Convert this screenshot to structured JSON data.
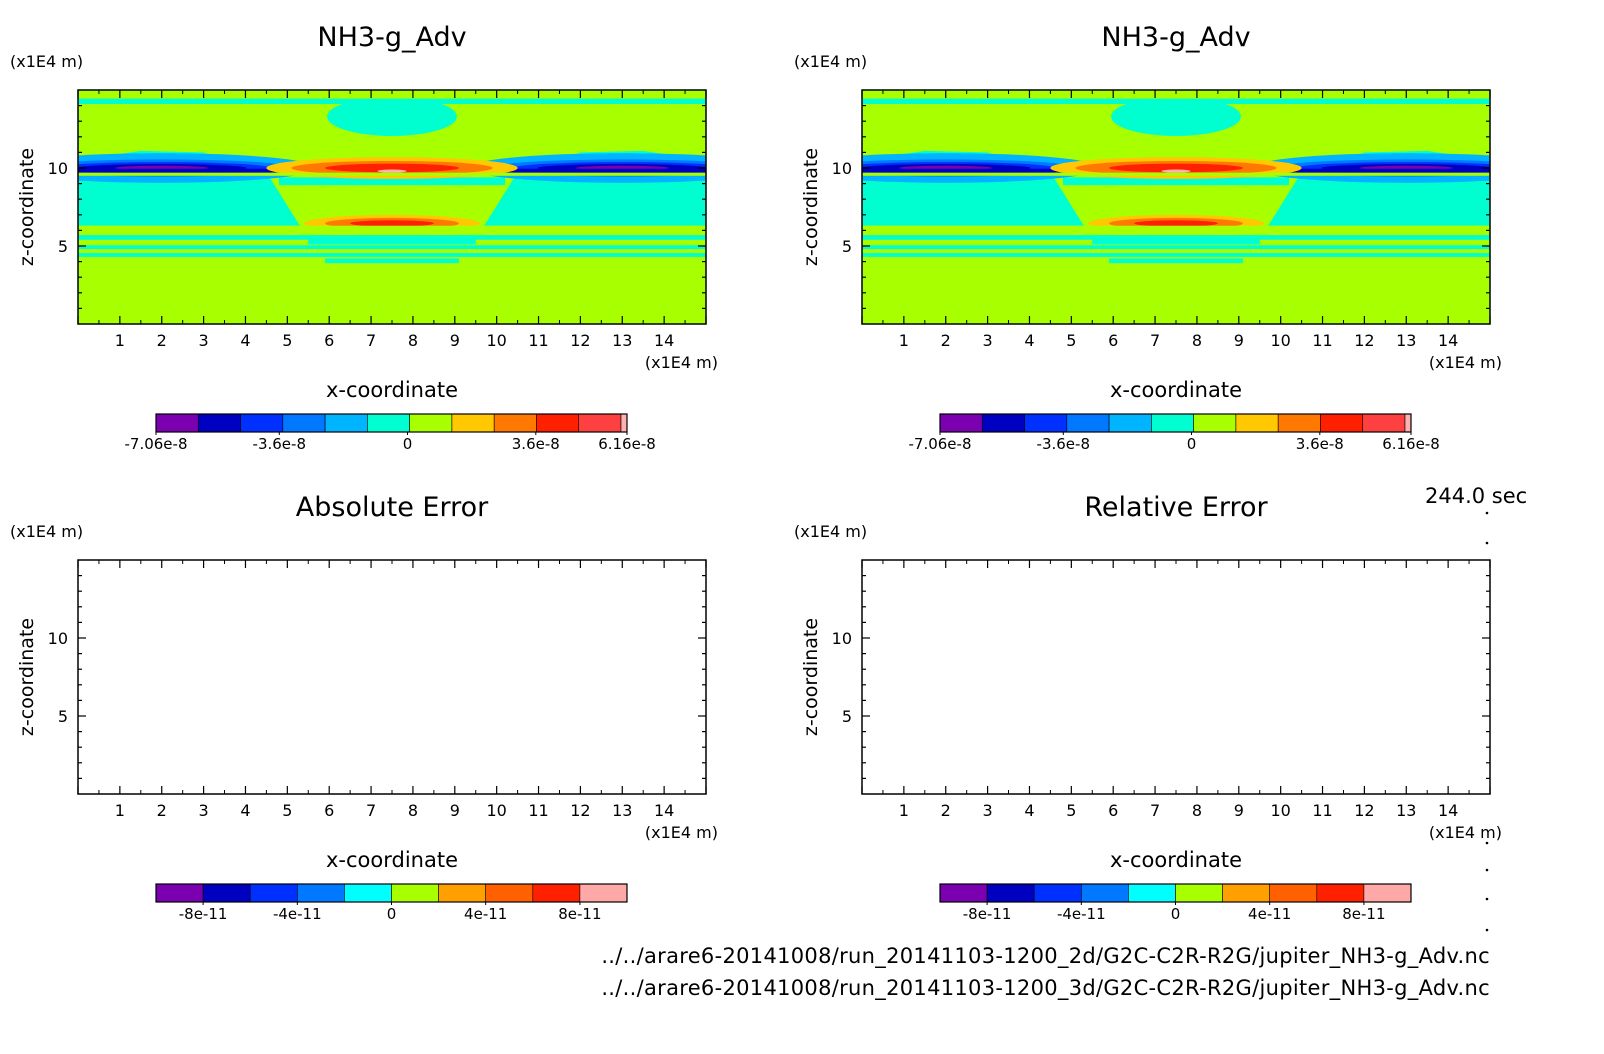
{
  "time_label": "244.0 sec",
  "files": [
    "../../arare6-20141008/run_20141103-1200_2d/G2C-C2R-R2G/jupiter_NH3-g_Adv.nc",
    "../../arare6-20141008/run_20141103-1200_3d/G2C-C2R-R2G/jupiter_NH3-g_Adv.nc"
  ],
  "chart_data": [
    {
      "type": "heatmap",
      "title": "NH3-g_Adv",
      "xlabel": "x-coordinate",
      "ylabel": "z-coordinate",
      "x_unit": "(x1E4 m)",
      "y_unit": "(x1E4 m)",
      "xlim": [
        0,
        15
      ],
      "ylim": [
        0,
        15
      ],
      "x_ticks": [
        1,
        2,
        3,
        4,
        5,
        6,
        7,
        8,
        9,
        10,
        11,
        12,
        13,
        14
      ],
      "y_ticks": [
        5,
        10
      ],
      "filled": true,
      "colorbar": {
        "colors": [
          "#7a00b0",
          "#0000c0",
          "#0030ff",
          "#0078ff",
          "#00b4ff",
          "#00ffd0",
          "#a8ff00",
          "#ffc800",
          "#ff7800",
          "#ff2000",
          "#ff4040",
          "#ffb0b0"
        ],
        "tick_labels": [
          "-7.06e-8",
          "-3.6e-8",
          "0",
          "3.6e-8",
          "6.16e-8"
        ],
        "range": [
          -7.06e-08,
          6.16e-08
        ]
      }
    },
    {
      "type": "heatmap",
      "title": "NH3-g_Adv",
      "xlabel": "x-coordinate",
      "ylabel": "z-coordinate",
      "x_unit": "(x1E4 m)",
      "y_unit": "(x1E4 m)",
      "xlim": [
        0,
        15
      ],
      "ylim": [
        0,
        15
      ],
      "x_ticks": [
        1,
        2,
        3,
        4,
        5,
        6,
        7,
        8,
        9,
        10,
        11,
        12,
        13,
        14
      ],
      "y_ticks": [
        5,
        10
      ],
      "filled": true,
      "colorbar": {
        "colors": [
          "#7a00b0",
          "#0000c0",
          "#0030ff",
          "#0078ff",
          "#00b4ff",
          "#00ffd0",
          "#a8ff00",
          "#ffc800",
          "#ff7800",
          "#ff2000",
          "#ff4040",
          "#ffb0b0"
        ],
        "tick_labels": [
          "-7.06e-8",
          "-3.6e-8",
          "0",
          "3.6e-8",
          "6.16e-8"
        ],
        "range": [
          -7.06e-08,
          6.16e-08
        ]
      }
    },
    {
      "type": "heatmap",
      "title": "Absolute Error",
      "xlabel": "x-coordinate",
      "ylabel": "z-coordinate",
      "x_unit": "(x1E4 m)",
      "y_unit": "(x1E4 m)",
      "xlim": [
        0,
        15
      ],
      "ylim": [
        0,
        15
      ],
      "x_ticks": [
        1,
        2,
        3,
        4,
        5,
        6,
        7,
        8,
        9,
        10,
        11,
        12,
        13,
        14
      ],
      "y_ticks": [
        5,
        10
      ],
      "filled": false,
      "colorbar": {
        "colors": [
          "#7a00b0",
          "#0000c0",
          "#0030ff",
          "#0078ff",
          "#00ffff",
          "#a8ff00",
          "#ffa000",
          "#ff6000",
          "#ff2000",
          "#ffa8a8"
        ],
        "tick_labels": [
          "-8e-11",
          "-4e-11",
          "0",
          "4e-11",
          "8e-11"
        ],
        "range": [
          -1e-10,
          1e-10
        ]
      }
    },
    {
      "type": "heatmap",
      "title": "Relative Error",
      "xlabel": "x-coordinate",
      "ylabel": "z-coordinate",
      "x_unit": "(x1E4 m)",
      "y_unit": "(x1E4 m)",
      "xlim": [
        0,
        15
      ],
      "ylim": [
        0,
        15
      ],
      "x_ticks": [
        1,
        2,
        3,
        4,
        5,
        6,
        7,
        8,
        9,
        10,
        11,
        12,
        13,
        14
      ],
      "y_ticks": [
        5,
        10
      ],
      "filled": false,
      "colorbar": {
        "colors": [
          "#7a00b0",
          "#0000c0",
          "#0030ff",
          "#0078ff",
          "#00ffff",
          "#a8ff00",
          "#ffa000",
          "#ff6000",
          "#ff2000",
          "#ffa8a8"
        ],
        "tick_labels": [
          "-8e-11",
          "-4e-11",
          "0",
          "4e-11",
          "8e-11"
        ],
        "range": [
          -1e-10,
          1e-10
        ]
      }
    }
  ]
}
